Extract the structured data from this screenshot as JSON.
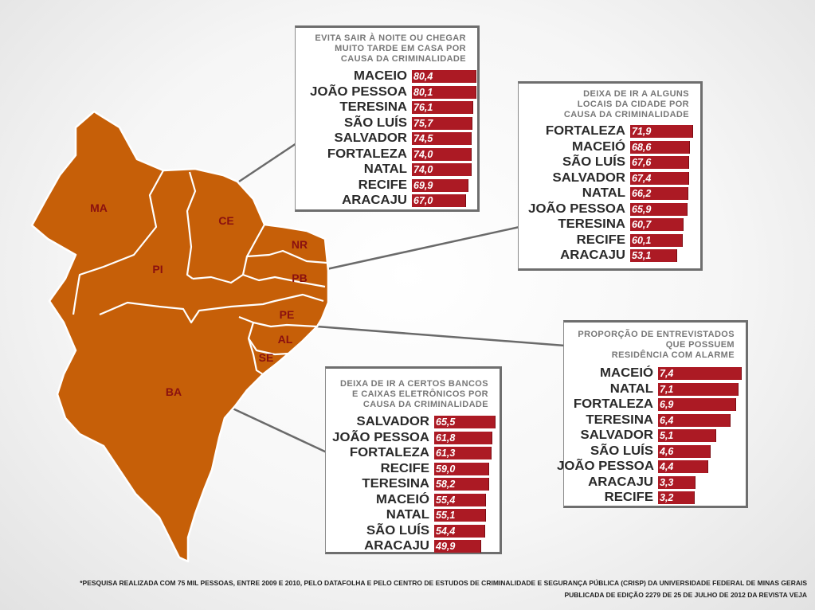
{
  "colors": {
    "map_fill": "#c65f08",
    "map_border": "#ffffff",
    "bar": "#ac1a24",
    "label": "#8a1010"
  },
  "map": {
    "states": [
      "MA",
      "PI",
      "CE",
      "NR",
      "PB",
      "PE",
      "AL",
      "SE",
      "BA"
    ]
  },
  "chart_data": [
    {
      "type": "bar",
      "orientation": "horizontal",
      "title": "EVITA SAIR À NOITE OU CHEGAR MUITO TARDE EM CASA POR CAUSA DA CRIMINALIDADE",
      "title_lines": [
        "EVITA SAIR À NOITE OU CHEGAR",
        "MUITO TARDE EM CASA POR",
        "CAUSA DA CRIMINALIDADE"
      ],
      "categories": [
        "MACEIO",
        "JOÃO PESSOA",
        "TERESINA",
        "SÃO LUÍS",
        "SALVADOR",
        "FORTALEZA",
        "NATAL",
        "RECIFE",
        "ARACAJU"
      ],
      "values": [
        80.4,
        80.1,
        76.1,
        75.7,
        74.5,
        74.0,
        74.0,
        69.9,
        67.0
      ],
      "labels": [
        "80,4",
        "80,1",
        "76,1",
        "75,7",
        "74,5",
        "74,0",
        "74,0",
        "69,9",
        "67,0"
      ]
    },
    {
      "type": "bar",
      "orientation": "horizontal",
      "title": "DEIXA DE IR A ALGUNS LOCAIS DA CIDADE POR CAUSA DA CRIMINALIDADE",
      "title_lines": [
        "DEIXA DE IR A ALGUNS",
        "LOCAIS DA CIDADE POR",
        "CAUSA DA CRIMINALIDADE"
      ],
      "categories": [
        "FORTALEZA",
        "MACEIÓ",
        "SÃO LUÍS",
        "SALVADOR",
        "NATAL",
        "JOÃO PESSOA",
        "TERESINA",
        "RECIFE",
        "ARACAJU"
      ],
      "values": [
        71.9,
        68.6,
        67.6,
        67.4,
        66.2,
        65.9,
        60.7,
        60.1,
        53.1
      ],
      "labels": [
        "71,9",
        "68,6",
        "67,6",
        "67,4",
        "66,2",
        "65,9",
        "60,7",
        "60,1",
        "53,1"
      ]
    },
    {
      "type": "bar",
      "orientation": "horizontal",
      "title": "PROPORÇÃO DE ENTREVISTADOS QUE POSSUEM RESIDÊNCIA COM ALARME",
      "title_lines": [
        "PROPORÇÃO DE ENTREVISTADOS",
        "QUE POSSUEM",
        "RESIDÊNCIA COM ALARME"
      ],
      "categories": [
        "MACEIÓ",
        "NATAL",
        "FORTALEZA",
        "TERESINA",
        "SALVADOR",
        "SÃO LUÍS",
        "JOÃO PESSOA",
        "ARACAJU",
        "RECIFE"
      ],
      "values": [
        7.4,
        7.1,
        6.9,
        6.4,
        5.1,
        4.6,
        4.4,
        3.3,
        3.2
      ],
      "labels": [
        "7,4",
        "7,1",
        "6,9",
        "6,4",
        "5,1",
        "4,6",
        "4,4",
        "3,3",
        "3,2"
      ]
    },
    {
      "type": "bar",
      "orientation": "horizontal",
      "title": "DEIXA DE IR A CERTOS BANCOS E CAIXAS ELETRÔNICOS POR CAUSA DA CRIMINALIDADE",
      "title_lines": [
        "DEIXA DE IR A CERTOS BANCOS",
        "E CAIXAS ELETRÔNICOS POR",
        "CAUSA DA CRIMINALIDADE"
      ],
      "categories": [
        "SALVADOR",
        "JOÃO PESSOA",
        "FORTALEZA",
        "RECIFE",
        "TERESINA",
        "MACEIÓ",
        "NATAL",
        "SÃO LUÍS",
        "ARACAJU"
      ],
      "values": [
        65.5,
        61.8,
        61.3,
        59.0,
        58.2,
        55.4,
        55.1,
        54.4,
        49.9
      ],
      "labels": [
        "65,5",
        "61,8",
        "61,3",
        "59,0",
        "58,2",
        "55,4",
        "55,1",
        "54,4",
        "49,9"
      ]
    }
  ],
  "footnote": {
    "line1": "*PESQUISA REALIZADA COM 75 MIL PESSOAS, ENTRE 2009 E 2010, PELO DATAFOLHA E PELO CENTRO DE ESTUDOS DE CRIMINALIDADE E SEGURANÇA PÚBLICA (CRISP) DA UNIVERSIDADE FEDERAL DE MINAS GERAIS",
    "line2": "PUBLICADA DE EDIÇÃO 2279 DE 25 DE JULHO DE 2012 DA REVISTA VEJA"
  }
}
